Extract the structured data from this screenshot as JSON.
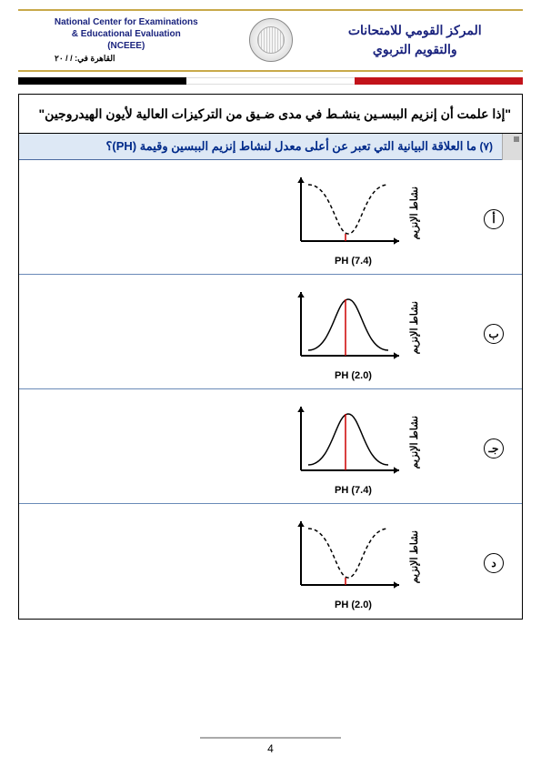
{
  "header": {
    "left_line1": "National Center for Examinations",
    "left_line2": "& Educational Evaluation",
    "left_line3": "(NCEEE)",
    "right_line1": "المركز القومي للامتحانات",
    "right_line2": "والتقويم التربوي",
    "date_text": "القاهرة في:    /    / ٢٠"
  },
  "flag": {
    "red": "#c2131a",
    "white": "#ffffff",
    "black": "#000000"
  },
  "context_text": "\"إذا علمت أن إنزيم الببسـين ينشـط في مدى ضـيق من التركيزات العالية لأيون الهيدروجين\"",
  "question": {
    "number": "(٧)",
    "text": "ما العلاقة البيانية التي تعبر عن أعلى معدل لنشاط إنزيم الببسين وقيمة (PH)؟"
  },
  "axis_labels": {
    "y": "نشاط الإنزيم"
  },
  "options": [
    {
      "label": "أ",
      "curve_type": "inverted_bell",
      "x_label": "PH (7.4)",
      "curve_color": "#000000",
      "marker_color": "#cc0000",
      "dash": "4,3"
    },
    {
      "label": "ب",
      "curve_type": "bell",
      "x_label": "PH (2.0)",
      "curve_color": "#000000",
      "marker_color": "#cc0000",
      "dash": "none"
    },
    {
      "label": "جـ",
      "curve_type": "bell",
      "x_label": "PH (7.4)",
      "curve_color": "#000000",
      "marker_color": "#cc0000",
      "dash": "none"
    },
    {
      "label": "د",
      "curve_type": "inverted_bell",
      "x_label": "PH (2.0)",
      "curve_color": "#000000",
      "marker_color": "#cc0000",
      "dash": "4,3"
    }
  ],
  "chart_style": {
    "width": 130,
    "height": 90,
    "axis_color": "#000000",
    "axis_width": 2,
    "curve_width": 1.5,
    "marker_width": 1.5,
    "arrow_size": 6,
    "background": "#ffffff",
    "label_fontsize": 11
  },
  "page_number": "4"
}
